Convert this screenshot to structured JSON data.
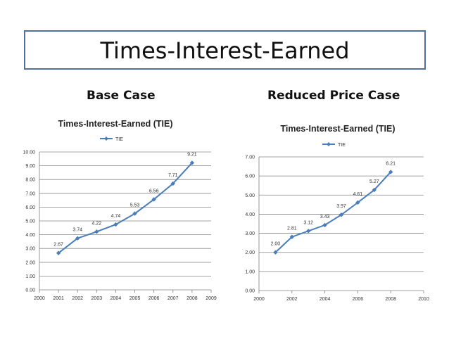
{
  "slide": {
    "title": "Times-Interest-Earned",
    "left_case": "Base Case",
    "right_case": "Reduced Price Case"
  },
  "colors": {
    "series": "#4a7ebb",
    "grid": "#868686",
    "frame": "#4f6f9f"
  },
  "chart_data": [
    {
      "type": "line",
      "title": "Times-Interest-Earned (TIE)",
      "legend": "top",
      "grid": true,
      "xlim": [
        2000,
        2009
      ],
      "ylim": [
        0,
        10
      ],
      "xticks": [
        "2000",
        "2001",
        "2002",
        "2003",
        "2004",
        "2005",
        "2006",
        "2007",
        "2008",
        "2009"
      ],
      "yticks": [
        "0.00",
        "1.00",
        "2.00",
        "3.00",
        "4.00",
        "5.00",
        "6.00",
        "7.00",
        "8.00",
        "9.00",
        "10.00"
      ],
      "series": [
        {
          "name": "TIE",
          "x": [
            2001,
            2002,
            2003,
            2004,
            2005,
            2006,
            2007,
            2008
          ],
          "values": [
            2.67,
            3.74,
            4.22,
            4.74,
            5.53,
            6.56,
            7.71,
            9.21
          ],
          "labels": [
            "2.67",
            "3.74",
            "4.22",
            "4.74",
            "5.53",
            "6.56",
            "7.71",
            "9.21"
          ]
        }
      ]
    },
    {
      "type": "line",
      "title": "Times-Interest-Earned (TIE)",
      "legend": "top",
      "grid": true,
      "xlim": [
        2000,
        2010
      ],
      "ylim": [
        0,
        7
      ],
      "xticks": [
        "2000",
        "2002",
        "2004",
        "2006",
        "2008",
        "2010"
      ],
      "yticks": [
        "0.00",
        "1.00",
        "2.00",
        "3.00",
        "4.00",
        "5.00",
        "6.00",
        "7.00"
      ],
      "series": [
        {
          "name": "TIE",
          "x": [
            2001,
            2002,
            2003,
            2004,
            2005,
            2006,
            2007,
            2008
          ],
          "values": [
            2.0,
            2.81,
            3.12,
            3.43,
            3.97,
            4.61,
            5.27,
            6.21
          ],
          "labels": [
            "2.00",
            "2.81",
            "3.12",
            "3.43",
            "3.97",
            "4.61",
            "5.27",
            "6.21"
          ]
        }
      ]
    }
  ]
}
